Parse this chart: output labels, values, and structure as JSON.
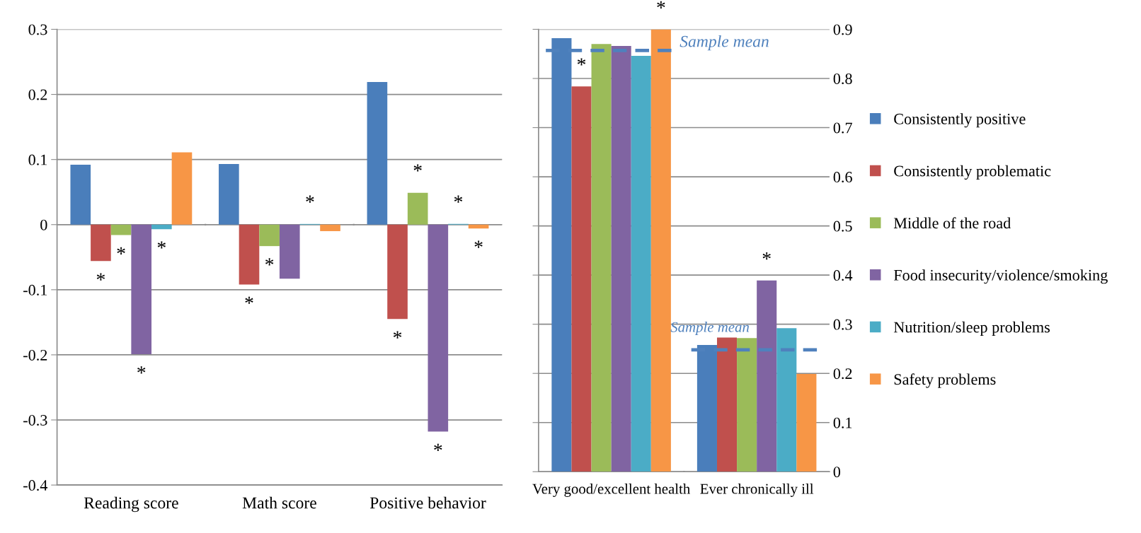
{
  "chart_data": [
    {
      "type": "bar",
      "categories": [
        "Reading score",
        "Math score",
        "Positive behavior"
      ],
      "ylim": [
        -0.4,
        0.3
      ],
      "yticks": [
        -0.4,
        -0.3,
        -0.2,
        -0.1,
        0,
        0.1,
        0.2,
        0.3
      ],
      "grid": "y",
      "series": [
        {
          "color": "#4a7ebb",
          "values": [
            0.092,
            0.093,
            0.219
          ],
          "value_labels": [
            null,
            null,
            null
          ]
        },
        {
          "color": "#c0504d",
          "values": [
            -0.056,
            -0.092,
            -0.145
          ],
          "value_labels": [
            "*",
            "*",
            "*"
          ]
        },
        {
          "color": "#9bbb59",
          "values": [
            -0.016,
            -0.033,
            0.049
          ],
          "value_labels": [
            "*",
            "*",
            "*"
          ]
        },
        {
          "color": "#8064a2",
          "values": [
            -0.199,
            -0.083,
            -0.318
          ],
          "value_labels": [
            "*",
            null,
            "*"
          ]
        },
        {
          "color": "#4bacc6",
          "values": [
            -0.007,
            0.001,
            0.001
          ],
          "value_labels": [
            "*",
            "*",
            "*"
          ]
        },
        {
          "color": "#f79646",
          "values": [
            0.111,
            -0.01,
            -0.006
          ],
          "value_labels": [
            null,
            null,
            "*"
          ]
        }
      ]
    },
    {
      "type": "bar",
      "categories": [
        "Very good/excellent health",
        "Ever chronically ill"
      ],
      "y2lim": [
        0,
        0.9
      ],
      "y2ticks": [
        0,
        0.1,
        0.2,
        0.3,
        0.4,
        0.5,
        0.6,
        0.7,
        0.8,
        0.9
      ],
      "grid": "y",
      "legend": "right",
      "series": [
        {
          "name": "Consistently positive",
          "color": "#4a7ebb",
          "axis": "y2",
          "values": [
            0.882,
            0.258
          ],
          "value_labels": [
            null,
            null
          ]
        },
        {
          "name": "Consistently problematic",
          "color": "#c0504d",
          "axis": "y2",
          "values": [
            0.784,
            0.273
          ],
          "value_labels": [
            "*",
            null
          ]
        },
        {
          "name": "Middle of the road",
          "color": "#9bbb59",
          "axis": "y2",
          "values": [
            0.87,
            0.272
          ],
          "value_labels": [
            null,
            null
          ]
        },
        {
          "name": "Food insecurity/violence/smoking",
          "color": "#8064a2",
          "axis": "y2",
          "values": [
            0.866,
            0.389
          ],
          "value_labels": [
            null,
            "*"
          ]
        },
        {
          "name": "Nutrition/sleep problems",
          "color": "#4bacc6",
          "axis": "y2",
          "values": [
            0.846,
            0.292
          ],
          "value_labels": [
            null,
            null
          ]
        },
        {
          "name": "Safety problems",
          "color": "#f79646",
          "axis": "y2",
          "values": [
            0.9,
            0.199
          ],
          "value_labels": [
            "*",
            null
          ]
        }
      ],
      "ref_lines": [
        {
          "axis": "y2",
          "value": 0.857,
          "label": "Sample mean",
          "color": "#4f81bd",
          "line_style": "dashed"
        },
        {
          "axis": "y2",
          "value": 0.248,
          "label": "Sample mean",
          "color": "#4f81bd",
          "line_style": "dashed"
        }
      ]
    }
  ]
}
